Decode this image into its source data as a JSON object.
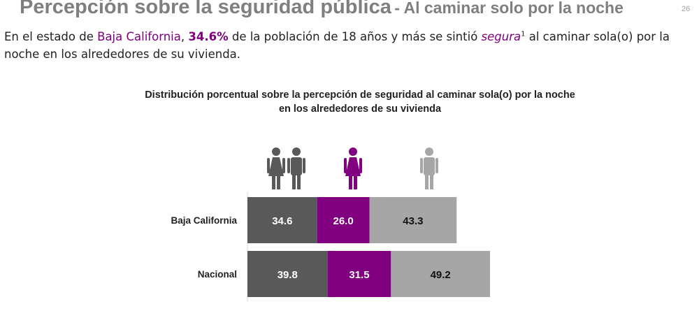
{
  "header": {
    "title_main": "Percepción sobre la seguridad pública",
    "title_sub": "- Al caminar solo por la noche",
    "page_number": "26"
  },
  "intro": {
    "part1": "En el estado de ",
    "state": "Baja California",
    "part2": ", ",
    "percent": "34.6%",
    "part3": " de la población de 18 años y más se sintió ",
    "segura": "segura",
    "footnote": "1",
    "part4": " al caminar sola(o) por la noche en los alrededores de su vivienda."
  },
  "colors": {
    "total": "#595959",
    "mujeres": "#800080",
    "hombres": "#a6a6a6"
  },
  "icons": [
    "woman-and-man-icon",
    "woman-icon",
    "man-icon"
  ],
  "chart_data": {
    "type": "bar",
    "title": "Distribución porcentual sobre la percepción de seguridad al caminar sola(o) por la noche en los alrededores de su vivienda",
    "categories": [
      "Baja California",
      "Nacional"
    ],
    "series": [
      {
        "values": [
          34.6,
          39.8
        ],
        "color": "#595959"
      },
      {
        "values": [
          26.0,
          31.5
        ],
        "color": "#800080"
      },
      {
        "values": [
          43.3,
          49.2
        ],
        "color": "#a6a6a6"
      }
    ],
    "stacked": true,
    "orientation": "horizontal",
    "legend": "icons-above"
  }
}
